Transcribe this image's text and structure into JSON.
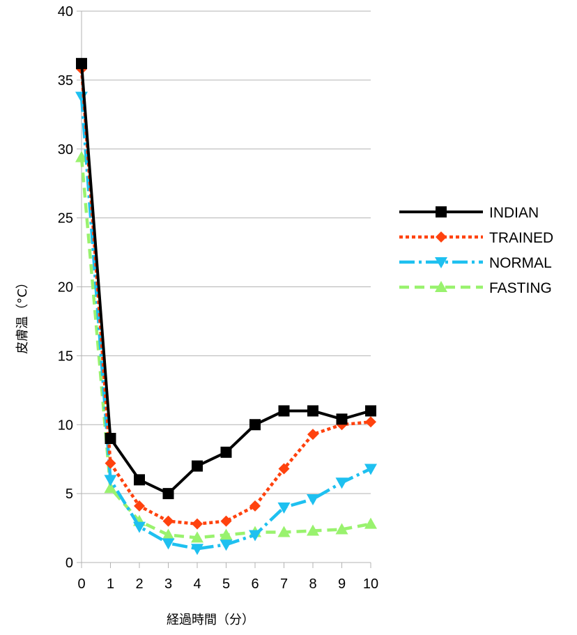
{
  "chart_data": {
    "type": "line",
    "xlabel": "経過時間（分）",
    "ylabel": "皮膚温（°C）",
    "x": [
      0,
      1,
      2,
      3,
      4,
      5,
      6,
      7,
      8,
      9,
      10
    ],
    "xlim": [
      0,
      10
    ],
    "ylim": [
      0,
      40
    ],
    "yticks": [
      0,
      5,
      10,
      15,
      20,
      25,
      30,
      35,
      40
    ],
    "grid": "horizontal",
    "legend_position": "right",
    "series": [
      {
        "name": "INDIAN",
        "color": "#000000",
        "marker": "square",
        "values": [
          36.2,
          9.0,
          6.0,
          5.0,
          7.0,
          8.0,
          10.0,
          11.0,
          11.0,
          10.4,
          11.0
        ]
      },
      {
        "name": "TRAINED",
        "color": "#ff420e",
        "marker": "diamond",
        "values": [
          35.8,
          7.2,
          4.1,
          3.0,
          2.8,
          3.0,
          4.1,
          6.8,
          9.3,
          10.0,
          10.2
        ]
      },
      {
        "name": "NORMAL",
        "color": "#1ec0f0",
        "marker": "triangle-down",
        "values": [
          33.8,
          6.0,
          2.6,
          1.4,
          1.0,
          1.3,
          2.0,
          4.0,
          4.6,
          5.8,
          6.8
        ]
      },
      {
        "name": "FASTING",
        "color": "#99f26e",
        "marker": "triangle-up",
        "values": [
          29.4,
          5.4,
          3.0,
          2.0,
          1.8,
          2.0,
          2.2,
          2.2,
          2.3,
          2.4,
          2.8
        ]
      }
    ]
  }
}
